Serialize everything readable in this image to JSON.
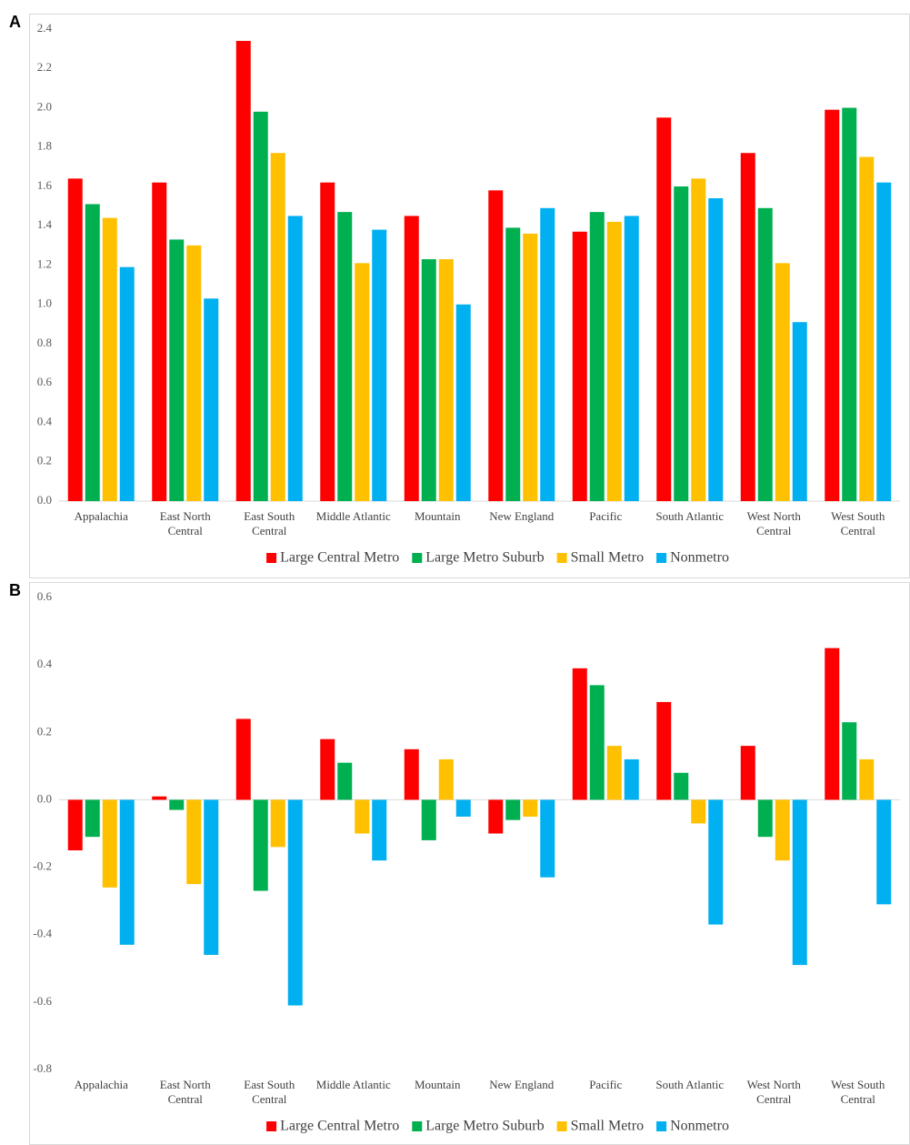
{
  "chart_data": [
    {
      "type": "bar",
      "label": "A",
      "categories": [
        "Appalachia",
        "East North Central",
        "East South Central",
        "Middle Atlantic",
        "Mountain",
        "New England",
        "Pacific",
        "South Atlantic",
        "West North Central",
        "West South Central"
      ],
      "series": [
        {
          "name": "Large Central Metro",
          "color": "#ff0000",
          "values": [
            1.64,
            1.62,
            2.34,
            1.62,
            1.45,
            1.58,
            1.37,
            1.95,
            1.77,
            1.99
          ]
        },
        {
          "name": "Large Metro Suburb",
          "color": "#00b050",
          "values": [
            1.51,
            1.33,
            1.98,
            1.47,
            1.23,
            1.39,
            1.47,
            1.6,
            1.49,
            2.0
          ]
        },
        {
          "name": "Small Metro",
          "color": "#ffc000",
          "values": [
            1.44,
            1.3,
            1.77,
            1.21,
            1.23,
            1.36,
            1.42,
            1.64,
            1.21,
            1.75
          ]
        },
        {
          "name": "Nonmetro",
          "color": "#00b0f0",
          "values": [
            1.19,
            1.03,
            1.45,
            1.38,
            1.0,
            1.49,
            1.45,
            1.54,
            0.91,
            1.62
          ]
        }
      ],
      "ylim": [
        0,
        2.4
      ],
      "yticks": [
        {
          "value": 0,
          "label": "0.0"
        },
        0.2,
        0.4,
        0.6,
        0.8,
        {
          "value": 1,
          "label": "1.0"
        },
        1.2,
        1.4,
        1.6,
        1.8,
        {
          "value": 2,
          "label": "2.0"
        },
        2.2,
        2.4
      ],
      "grid": false,
      "legend": "bottom"
    },
    {
      "type": "bar",
      "label": "B",
      "categories": [
        "Appalachia",
        "East North Central",
        "East South Central",
        "Middle Atlantic",
        "Mountain",
        "New England",
        "Pacific",
        "South Atlantic",
        "West North Central",
        "West South Central"
      ],
      "series": [
        {
          "name": "Large Central Metro",
          "color": "#ff0000",
          "values": [
            -0.15,
            0.01,
            0.24,
            0.18,
            0.15,
            -0.1,
            0.39,
            0.29,
            0.16,
            0.45
          ]
        },
        {
          "name": "Large Metro Suburb",
          "color": "#00b050",
          "values": [
            -0.11,
            -0.03,
            -0.27,
            0.11,
            -0.12,
            -0.06,
            0.34,
            0.08,
            -0.11,
            0.23
          ]
        },
        {
          "name": "Small Metro",
          "color": "#ffc000",
          "values": [
            -0.26,
            -0.25,
            -0.14,
            -0.1,
            0.12,
            -0.05,
            0.16,
            -0.07,
            -0.18,
            0.12
          ]
        },
        {
          "name": "Nonmetro",
          "color": "#00b0f0",
          "values": [
            -0.43,
            -0.46,
            -0.61,
            -0.18,
            -0.05,
            -0.23,
            0.12,
            -0.37,
            -0.49,
            -0.31
          ]
        }
      ],
      "ylim": [
        -0.8,
        0.6
      ],
      "yticks": [
        -0.8,
        -0.6,
        -0.4,
        -0.2,
        {
          "value": 0,
          "label": "0.0"
        },
        0.2,
        0.4,
        0.6
      ],
      "grid": false,
      "legend": "bottom"
    }
  ]
}
